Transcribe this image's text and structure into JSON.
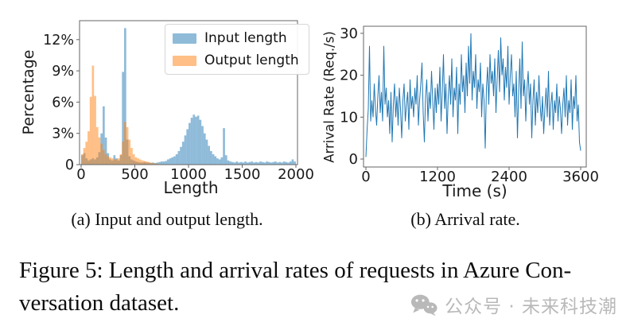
{
  "figure": {
    "captions": {
      "a": "(a) Input and output length.",
      "b": "(b) Arrival rate.",
      "figure_line1": "Figure 5: Length and arrival rates of requests in Azure Con-",
      "figure_line2": "versation dataset."
    }
  },
  "watermark": {
    "icon": "wechat-icon",
    "text": "公众号 · 未来科技潮",
    "color": "#b9b9b9"
  },
  "colors": {
    "input_series": "#1f77b4",
    "output_series": "#ff7f0e",
    "arrival_line": "#1f77b4",
    "spine": "#666666",
    "tick_text": "#1a1a1a"
  },
  "chart_data": [
    {
      "type": "bar",
      "title": "",
      "xlabel": "Length",
      "ylabel": "Percentage",
      "xlim": [
        0,
        2000
      ],
      "ylim": [
        0,
        14
      ],
      "x_ticks": [
        0,
        500,
        1000,
        1500,
        2000
      ],
      "y_tick_values": [
        0,
        3,
        6,
        9,
        12
      ],
      "y_tick_labels": [
        "0",
        "3%",
        "6%",
        "9%",
        "12%"
      ],
      "bin_width": 20,
      "grid": false,
      "legend_position": "upper right",
      "series": [
        {
          "name": "Input length",
          "color": "#1f77b4",
          "opacity": 0.5,
          "values": [
            0.9,
            1.1,
            0.6,
            0.4,
            0.5,
            0.6,
            0.5,
            0.7,
            1.2,
            3.0,
            5.6,
            2.6,
            1.1,
            0.5,
            0.4,
            0.9,
            0.6,
            0.4,
            0.9,
            8.9,
            13.1,
            2.4,
            0.8,
            0.5,
            0.4,
            0.3,
            0.25,
            0.2,
            0.2,
            0.25,
            0.2,
            0.2,
            0.15,
            0.2,
            0.15,
            0.2,
            0.25,
            0.3,
            0.3,
            0.35,
            0.5,
            0.6,
            0.7,
            0.8,
            1.0,
            1.3,
            1.7,
            2.2,
            2.8,
            3.4,
            4.0,
            4.5,
            4.8,
            4.6,
            4.7,
            4.3,
            3.7,
            3.0,
            2.4,
            1.8,
            1.3,
            1.0,
            0.8,
            0.6,
            0.5,
            0.7,
            3.5,
            0.9,
            0.4,
            0.3,
            0.25,
            0.2,
            0.3,
            0.2,
            0.25,
            0.2,
            0.3,
            0.2,
            0.25,
            0.3,
            0.2,
            0.25,
            0.2,
            0.3,
            0.25,
            0.2,
            0.3,
            0.25,
            0.2,
            0.25,
            0.3,
            0.2,
            0.25,
            0.2,
            0.3,
            0.25,
            0.2,
            0.3,
            0.5,
            0.3
          ]
        },
        {
          "name": "Output length",
          "color": "#ff7f0e",
          "opacity": 0.5,
          "values": [
            1.0,
            1.6,
            2.2,
            3.2,
            6.5,
            9.5,
            6.6,
            3.6,
            2.6,
            2.0,
            1.4,
            1.0,
            0.8,
            0.7,
            0.6,
            0.5,
            0.5,
            0.6,
            1.0,
            2.2,
            4.1,
            3.6,
            2.4,
            1.6,
            1.0,
            0.7,
            0.6,
            0.5,
            0.4,
            0.35,
            0.3,
            0.25,
            0.2,
            0.15,
            0.1,
            0.1,
            0.05,
            0.05,
            0,
            0,
            0,
            0,
            0,
            0,
            0,
            0,
            0,
            0,
            0,
            0,
            0,
            0,
            0,
            0,
            0,
            0,
            0,
            0,
            0,
            0,
            0,
            0,
            0,
            0,
            0,
            0,
            0,
            0,
            0,
            0,
            0,
            0,
            0,
            0,
            0,
            0,
            0,
            0,
            0,
            0,
            0,
            0,
            0,
            0,
            0,
            0,
            0,
            0,
            0,
            0,
            0,
            0,
            0,
            0,
            0,
            0,
            0,
            0,
            0,
            0
          ]
        }
      ]
    },
    {
      "type": "line",
      "title": "",
      "xlabel": "Time (s)",
      "ylabel": "Arrival Rate (Req./s)",
      "xlim": [
        0,
        3600
      ],
      "ylim": [
        0,
        30
      ],
      "x_ticks": [
        0,
        1200,
        2400,
        3600
      ],
      "y_tick_values": [
        0,
        10,
        20,
        30
      ],
      "y_tick_labels": [
        "0",
        "10",
        "20",
        "30"
      ],
      "grid": false,
      "sample_interval_s": 20,
      "series": [
        {
          "name": "Arrival rate",
          "color": "#1f77b4",
          "values": [
            0.5,
            7,
            12,
            27,
            9,
            14,
            10,
            18,
            12,
            8,
            15,
            20,
            11,
            16,
            9,
            27,
            13,
            17,
            10,
            14,
            6,
            16,
            4,
            13,
            18,
            10,
            15,
            8,
            17,
            12,
            5,
            14,
            18,
            9,
            13,
            16,
            7,
            19,
            12,
            15,
            10,
            17,
            13,
            20,
            8,
            14,
            18,
            23,
            11,
            4,
            15,
            19,
            9,
            16,
            12,
            21,
            14,
            7,
            17,
            11,
            18,
            13,
            22,
            9,
            16,
            25,
            12,
            18,
            6,
            15,
            20,
            13,
            24,
            10,
            17,
            14,
            22,
            6,
            18,
            13,
            25,
            16,
            20,
            11,
            23,
            15,
            27,
            18,
            30,
            14,
            21,
            17,
            25,
            12,
            19,
            16,
            23,
            10,
            18,
            14,
            2.5,
            17,
            22,
            13,
            25,
            18,
            21,
            15,
            24,
            11,
            19,
            26,
            16,
            29,
            20,
            24,
            14,
            22,
            17,
            27,
            13,
            20,
            25,
            15,
            18,
            10,
            21,
            5,
            16,
            24,
            12,
            28,
            15,
            19,
            9,
            17,
            21,
            13,
            18,
            5,
            14,
            19,
            8,
            16,
            11,
            20,
            13,
            9,
            15,
            6,
            12,
            17,
            10,
            21,
            8,
            13,
            16,
            7,
            14,
            11,
            18,
            9,
            15,
            12,
            6,
            13,
            17,
            10,
            20,
            8,
            14,
            11,
            19,
            7,
            15,
            12,
            20,
            9,
            13,
            4,
            2
          ]
        }
      ]
    }
  ]
}
